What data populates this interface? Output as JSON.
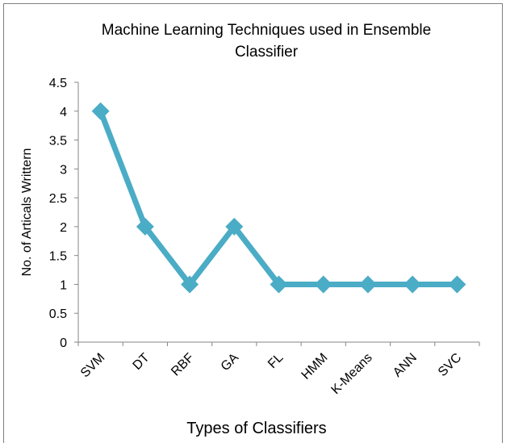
{
  "chart_data": {
    "type": "line",
    "title": "Machine Learning Techniques used in Ensemble Classifier",
    "x_label": "Types of Classifiers",
    "y_label": "No. of Articals Writtern",
    "categories": [
      "SVM",
      "DT",
      "RBF",
      "GA",
      "FL",
      "HMM",
      "K-Means",
      "ANN",
      "SVC"
    ],
    "values": [
      4,
      2,
      1,
      2,
      1,
      1,
      1,
      1,
      1
    ],
    "color": "#4bacc6",
    "ylim": [
      0,
      4.5
    ],
    "yticks": [
      0,
      0.5,
      1,
      1.5,
      2,
      2.5,
      3,
      3.5,
      4,
      4.5
    ],
    "grid": false
  }
}
